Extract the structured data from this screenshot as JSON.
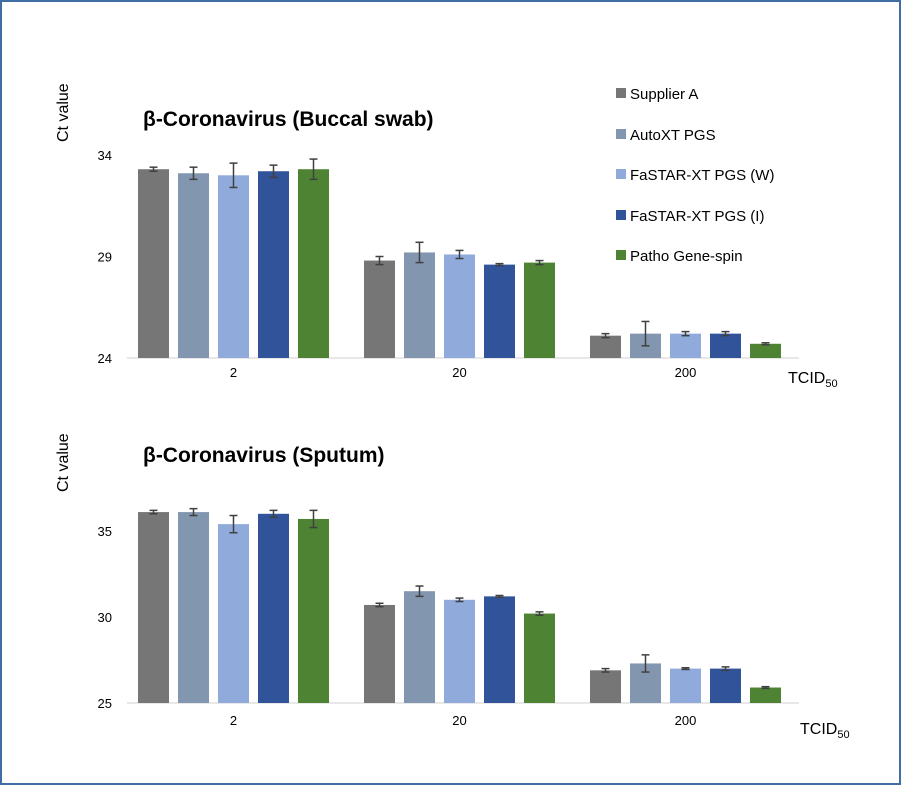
{
  "colors": {
    "frame": "#3f6da4",
    "axis": "#d0d0d0",
    "error_bar": "#404040"
  },
  "legend": {
    "items": [
      {
        "label": "Supplier A",
        "color": "#767676"
      },
      {
        "label": "AutoXT PGS",
        "color": "#8396b0"
      },
      {
        "label": "FaSTAR-XT PGS (W)",
        "color": "#90aadb"
      },
      {
        "label": "FaSTAR-XT PGS (I)",
        "color": "#30539a"
      },
      {
        "label": "Patho Gene-spin",
        "color": "#4f8334"
      }
    ]
  },
  "chart_data": [
    {
      "type": "bar",
      "title": "β-Coronavirus (Buccal swab)",
      "ylabel": "Ct value",
      "xlabel": "TCID",
      "xlabel_sub": "50",
      "categories": [
        "2",
        "20",
        "200"
      ],
      "ylim": [
        24,
        34
      ],
      "yticks": [
        24,
        29,
        34
      ],
      "grid": false,
      "legend_position": "right",
      "series": [
        {
          "name": "Supplier A",
          "values": [
            33.3,
            28.8,
            25.1
          ],
          "errors": [
            0.1,
            0.2,
            0.1
          ]
        },
        {
          "name": "AutoXT PGS",
          "values": [
            33.1,
            29.2,
            25.2
          ],
          "errors": [
            0.3,
            0.5,
            0.6
          ]
        },
        {
          "name": "FaSTAR-XT PGS (W)",
          "values": [
            33.0,
            29.1,
            25.2
          ],
          "errors": [
            0.6,
            0.2,
            0.1
          ]
        },
        {
          "name": "FaSTAR-XT PGS (I)",
          "values": [
            33.2,
            28.6,
            25.2
          ],
          "errors": [
            0.3,
            0.05,
            0.1
          ]
        },
        {
          "name": "Patho Gene-spin",
          "values": [
            33.3,
            28.7,
            24.7
          ],
          "errors": [
            0.5,
            0.1,
            0.05
          ]
        }
      ]
    },
    {
      "type": "bar",
      "title": "β-Coronavirus (Sputum)",
      "ylabel": "Ct value",
      "xlabel": "TCID",
      "xlabel_sub": "50",
      "categories": [
        "2",
        "20",
        "200"
      ],
      "ylim": [
        25,
        37
      ],
      "yticks": [
        25,
        30,
        35
      ],
      "grid": false,
      "legend_position": "none",
      "series": [
        {
          "name": "Supplier A",
          "values": [
            36.1,
            30.7,
            26.9
          ],
          "errors": [
            0.1,
            0.1,
            0.1
          ]
        },
        {
          "name": "AutoXT PGS",
          "values": [
            36.1,
            31.5,
            27.3
          ],
          "errors": [
            0.2,
            0.3,
            0.5
          ]
        },
        {
          "name": "FaSTAR-XT PGS (W)",
          "values": [
            35.4,
            31.0,
            27.0
          ],
          "errors": [
            0.5,
            0.1,
            0.05
          ]
        },
        {
          "name": "FaSTAR-XT PGS (I)",
          "values": [
            36.0,
            31.2,
            27.0
          ],
          "errors": [
            0.2,
            0.05,
            0.1
          ]
        },
        {
          "name": "Patho Gene-spin",
          "values": [
            35.7,
            30.2,
            25.9
          ],
          "errors": [
            0.5,
            0.1,
            0.05
          ]
        }
      ]
    }
  ]
}
